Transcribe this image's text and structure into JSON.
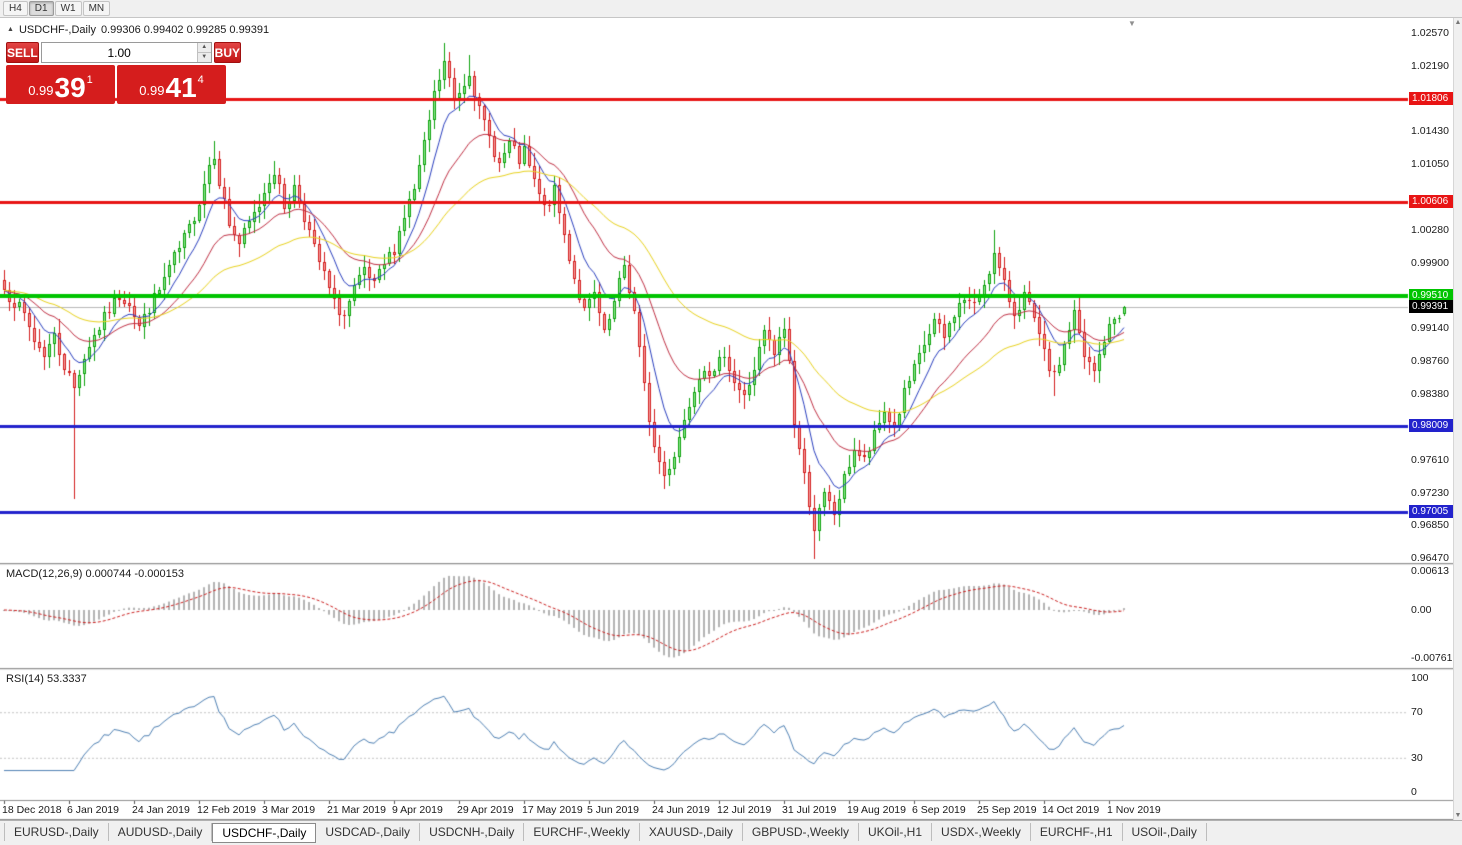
{
  "toolbar": {
    "timeframes": [
      {
        "label": "H4",
        "active": false
      },
      {
        "label": "D1",
        "active": true
      },
      {
        "label": "W1",
        "active": false
      },
      {
        "label": "MN",
        "active": false
      }
    ]
  },
  "chart_header": {
    "symbol_title": "USDCHF-,Daily",
    "ohlc": "0.99306 0.99402 0.99285 0.99391"
  },
  "trade_panel": {
    "sell_label": "SELL",
    "buy_label": "BUY",
    "volume": "1.00",
    "sell_price": {
      "base": "0.99",
      "big": "39",
      "sup": "1"
    },
    "buy_price": {
      "base": "0.99",
      "big": "41",
      "sup": "4"
    }
  },
  "price_axis": {
    "labels": [
      "1.02570",
      "1.02190",
      "1.01430",
      "1.01050",
      "1.00280",
      "0.99900",
      "0.99140",
      "0.98760",
      "0.98380",
      "0.97610",
      "0.97230",
      "0.96850",
      "0.96470"
    ]
  },
  "hlines": [
    {
      "price": 1.01806,
      "label": "1.01806",
      "color": "#e81414",
      "thickness": 3
    },
    {
      "price": 1.00606,
      "label": "1.00606",
      "color": "#e81414",
      "thickness": 3
    },
    {
      "price": 0.9951,
      "label": "0.99510",
      "color": "#00c400",
      "thickness": 4
    },
    {
      "price": 0.98009,
      "label": "0.98009",
      "color": "#2222cc",
      "thickness": 3
    },
    {
      "price": 0.97005,
      "label": "0.97005",
      "color": "#2222cc",
      "thickness": 3
    }
  ],
  "current_price": {
    "value": 0.99391,
    "label": "0.99391",
    "line_color": "#b8b8b8",
    "label_bg": "#000000"
  },
  "panes": {
    "macd": {
      "title": "MACD(12,26,9)",
      "values": "0.000744 -0.000153",
      "axis": [
        {
          "v": 0.00613,
          "label": "0.00613"
        },
        {
          "v": 0,
          "label": "0.00"
        },
        {
          "v": -0.00761,
          "label": "-0.00761"
        }
      ]
    },
    "rsi": {
      "title": "RSI(14)",
      "value": "53.3337",
      "axis": [
        {
          "v": 100,
          "label": "100"
        },
        {
          "v": 70,
          "label": "70"
        },
        {
          "v": 30,
          "label": "30"
        },
        {
          "v": 0,
          "label": "0"
        }
      ],
      "levels": [
        70,
        30
      ]
    }
  },
  "chart_data": {
    "type": "candlestick",
    "symbol": "USDCHF",
    "timeframe": "Daily",
    "ylim": [
      0.9641,
      1.0274
    ],
    "num_candles": 225,
    "date_label_step": 13,
    "date_labels": [
      "18 Dec 2018",
      "6 Jan 2019",
      "24 Jan 2019",
      "12 Feb 2019",
      "3 Mar 2019",
      "21 Mar 2019",
      "9 Apr 2019",
      "29 Apr 2019",
      "17 May 2019",
      "5 Jun 2019",
      "24 Jun 2019",
      "12 Jul 2019",
      "31 Jul 2019",
      "19 Aug 2019",
      "6 Sep 2019",
      "25 Sep 2019",
      "14 Oct 2019",
      "1 Nov 2019"
    ],
    "close_anchors": [
      [
        0,
        0.9958
      ],
      [
        2,
        0.9945
      ],
      [
        4,
        0.9928
      ],
      [
        6,
        0.99
      ],
      [
        8,
        0.9885
      ],
      [
        10,
        0.9905
      ],
      [
        12,
        0.987
      ],
      [
        13,
        0.9858
      ],
      [
        14,
        0.9845
      ],
      [
        15,
        0.9865
      ],
      [
        17,
        0.9895
      ],
      [
        19,
        0.9915
      ],
      [
        21,
        0.9935
      ],
      [
        23,
        0.9952
      ],
      [
        25,
        0.9945
      ],
      [
        27,
        0.9915
      ],
      [
        29,
        0.9938
      ],
      [
        31,
        0.9958
      ],
      [
        33,
        0.9985
      ],
      [
        35,
        1.0005
      ],
      [
        37,
        1.003
      ],
      [
        39,
        1.0062
      ],
      [
        41,
        1.0105
      ],
      [
        42,
        1.0118
      ],
      [
        43,
        1.0085
      ],
      [
        45,
        1.0035
      ],
      [
        47,
        1.0012
      ],
      [
        49,
        1.0035
      ],
      [
        51,
        1.0058
      ],
      [
        53,
        1.0088
      ],
      [
        54,
        1.0098
      ],
      [
        55,
        1.0075
      ],
      [
        56,
        1.0055
      ],
      [
        58,
        1.0078
      ],
      [
        60,
        1.0045
      ],
      [
        62,
        1.0005
      ],
      [
        64,
        0.9975
      ],
      [
        66,
        0.9942
      ],
      [
        68,
        0.9928
      ],
      [
        70,
        0.9958
      ],
      [
        72,
        0.998
      ],
      [
        74,
        0.9962
      ],
      [
        76,
        0.9988
      ],
      [
        78,
        1.0008
      ],
      [
        80,
        1.0045
      ],
      [
        82,
        1.0075
      ],
      [
        84,
        1.0125
      ],
      [
        86,
        1.0185
      ],
      [
        88,
        1.0222
      ],
      [
        90,
        1.018
      ],
      [
        92,
        1.02
      ],
      [
        93,
        1.0215
      ],
      [
        95,
        1.0165
      ],
      [
        97,
        1.0135
      ],
      [
        99,
        1.0105
      ],
      [
        101,
        1.0128
      ],
      [
        103,
        1.0108
      ],
      [
        104,
        1.0118
      ],
      [
        106,
        1.0082
      ],
      [
        108,
        1.0052
      ],
      [
        110,
        1.0072
      ],
      [
        112,
        1.0022
      ],
      [
        114,
        0.9972
      ],
      [
        116,
        0.9932
      ],
      [
        118,
        0.9952
      ],
      [
        120,
        0.9905
      ],
      [
        122,
        0.9942
      ],
      [
        124,
        0.9988
      ],
      [
        126,
        0.9932
      ],
      [
        128,
        0.9845
      ],
      [
        130,
        0.9775
      ],
      [
        132,
        0.9742
      ],
      [
        134,
        0.9768
      ],
      [
        136,
        0.9808
      ],
      [
        138,
        0.9848
      ],
      [
        140,
        0.9872
      ],
      [
        142,
        0.9858
      ],
      [
        144,
        0.9888
      ],
      [
        146,
        0.9852
      ],
      [
        148,
        0.9832
      ],
      [
        150,
        0.9868
      ],
      [
        152,
        0.9908
      ],
      [
        154,
        0.9882
      ],
      [
        156,
        0.9915
      ],
      [
        157,
        0.9875
      ],
      [
        158,
        0.9805
      ],
      [
        160,
        0.9742
      ],
      [
        162,
        0.9682
      ],
      [
        164,
        0.9718
      ],
      [
        166,
        0.9698
      ],
      [
        168,
        0.9738
      ],
      [
        170,
        0.9775
      ],
      [
        172,
        0.9758
      ],
      [
        174,
        0.9788
      ],
      [
        176,
        0.9818
      ],
      [
        178,
        0.9798
      ],
      [
        180,
        0.9838
      ],
      [
        182,
        0.9865
      ],
      [
        184,
        0.9895
      ],
      [
        186,
        0.9922
      ],
      [
        188,
        0.9902
      ],
      [
        190,
        0.9932
      ],
      [
        192,
        0.9948
      ],
      [
        194,
        0.9938
      ],
      [
        196,
        0.9968
      ],
      [
        198,
        0.9998
      ],
      [
        200,
        0.9962
      ],
      [
        202,
        0.9932
      ],
      [
        204,
        0.9952
      ],
      [
        206,
        0.9922
      ],
      [
        208,
        0.9882
      ],
      [
        210,
        0.9855
      ],
      [
        212,
        0.9895
      ],
      [
        214,
        0.9932
      ],
      [
        216,
        0.9878
      ],
      [
        218,
        0.9862
      ],
      [
        220,
        0.9902
      ],
      [
        222,
        0.9925
      ],
      [
        224,
        0.99391
      ]
    ],
    "special_candles": [
      {
        "i": 14,
        "l": 0.9716
      },
      {
        "i": 42,
        "h": 1.0132
      },
      {
        "i": 54,
        "h": 1.0108
      },
      {
        "i": 88,
        "h": 1.0245
      },
      {
        "i": 93,
        "h": 1.0232
      },
      {
        "i": 124,
        "h": 0.9998
      },
      {
        "i": 162,
        "l": 0.9646
      },
      {
        "i": 198,
        "h": 1.0028
      },
      {
        "i": 210,
        "l": 0.9835
      },
      {
        "i": 224,
        "o": 0.99306,
        "h": 0.99402,
        "l": 0.99285,
        "c": 0.99391
      }
    ],
    "candle_colors": {
      "up_border": "#0fa30f",
      "up_fill": "#90e890",
      "down_border": "#d42020",
      "down_fill": "#f4a0a0"
    },
    "moving_averages": [
      {
        "period": 8,
        "method": "ema",
        "color": "#2a3fbf"
      },
      {
        "period": 20,
        "method": "ema",
        "color": "#c03044"
      },
      {
        "period": 45,
        "method": "ema",
        "color": "#e8d21e"
      }
    ],
    "indicators": {
      "macd": {
        "fast": 12,
        "slow": 26,
        "signal": 9,
        "histogram_color": "#b4b4b4",
        "signal_color": "#cc2222"
      },
      "rsi": {
        "period": 14,
        "color": "#4f81b4",
        "level_color": "#c4c4c4"
      }
    },
    "noise_seed": 7
  },
  "tabs": [
    {
      "label": "EURUSD-,Daily",
      "active": false
    },
    {
      "label": "AUDUSD-,Daily",
      "active": false
    },
    {
      "label": "USDCHF-,Daily",
      "active": true
    },
    {
      "label": "USDCAD-,Daily",
      "active": false
    },
    {
      "label": "USDCNH-,Daily",
      "active": false
    },
    {
      "label": "EURCHF-,Weekly",
      "active": false
    },
    {
      "label": "XAUUSD-,Daily",
      "active": false
    },
    {
      "label": "GBPUSD-,Weekly",
      "active": false
    },
    {
      "label": "UKOil-,H1",
      "active": false
    },
    {
      "label": "USDX-,Weekly",
      "active": false
    },
    {
      "label": "EURCHF-,H1",
      "active": false
    },
    {
      "label": "USOil-,Daily",
      "active": false
    }
  ],
  "icons": {
    "collapse": "▲",
    "shift_marker": "▼",
    "scroll_up": "▲",
    "scroll_down": "▼",
    "spin_up": "▲",
    "spin_down": "▼"
  }
}
